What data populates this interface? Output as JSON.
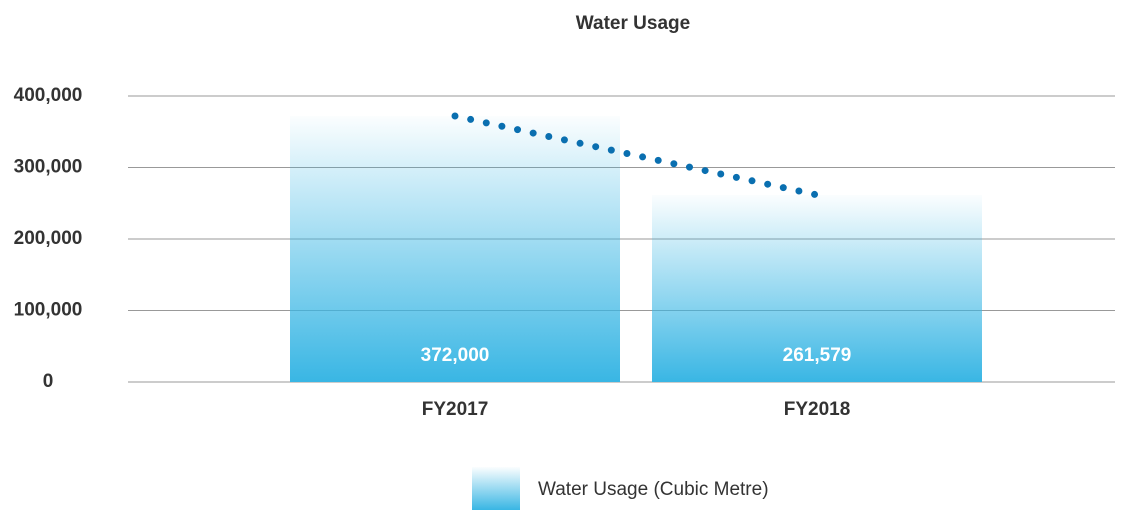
{
  "chart_data": {
    "type": "bar",
    "title": "Water Usage",
    "categories": [
      "FY2017",
      "FY2018"
    ],
    "series": [
      {
        "name": "Water Usage (Cubic Metre)",
        "color": "#39b6e4",
        "values": [
          372000,
          261579
        ],
        "value_labels": [
          "372,000",
          "261,579"
        ]
      }
    ],
    "ylim": [
      0,
      400000
    ],
    "yticks": [
      0,
      {
        "value": 100000,
        "label": "100,000"
      },
      {
        "value": 200000,
        "label": "200,000"
      },
      {
        "value": 300000,
        "label": "300,000"
      },
      {
        "value": 400000,
        "label": "400,000"
      }
    ],
    "grid": true,
    "trendline": true,
    "legend": "bottom"
  }
}
